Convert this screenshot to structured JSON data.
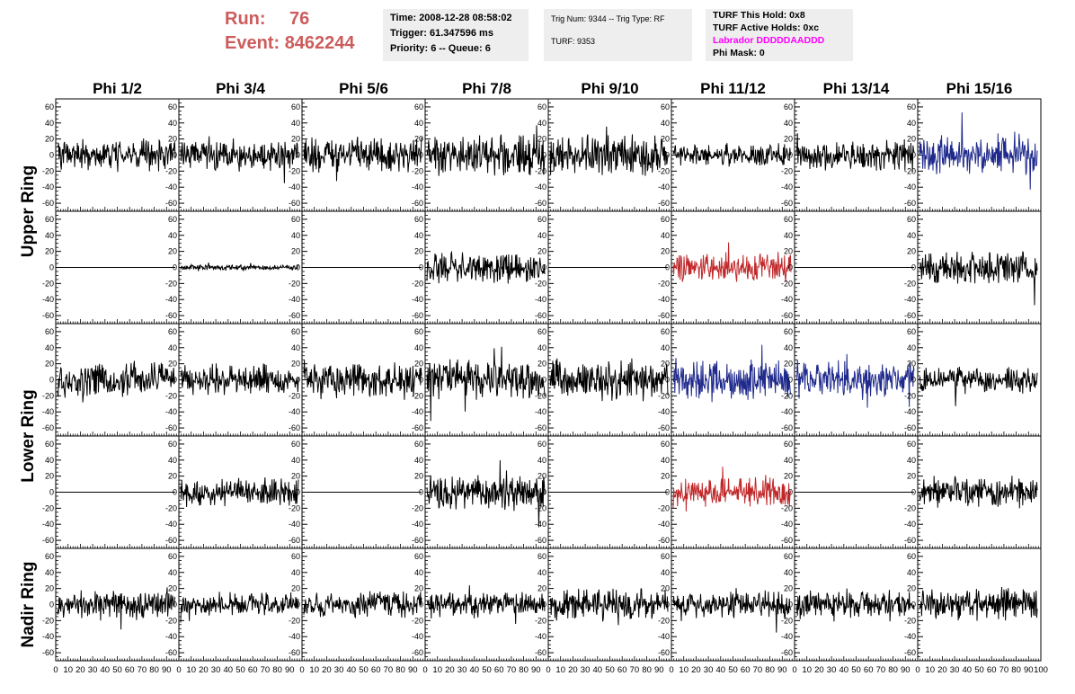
{
  "header": {
    "run_label": "Run:",
    "run_value": "76",
    "event_label": "Event:",
    "event_value": "8462244",
    "time": "Time: 2008-12-28 08:58:02",
    "trigger": "Trigger: 61.347596 ms",
    "priority": "Priority: 6 -- Queue: 6",
    "trig_num": "Trig Num: 9344 -- Trig Type: RF",
    "turf": "TURF: 9353",
    "turf_hold": "TURF This Hold: 0x8",
    "turf_active": "TURF Active Holds: 0xc",
    "labrador": "Labrador DDDDDAADDD",
    "phi_mask": "Phi Mask: 0"
  },
  "chart_data": {
    "type": "line",
    "columns": [
      "Phi 1/2",
      "Phi 3/4",
      "Phi 5/6",
      "Phi 7/8",
      "Phi 9/10",
      "Phi 11/12",
      "Phi 13/14",
      "Phi 15/16"
    ],
    "row_groups": [
      {
        "label": "Upper Ring",
        "rows": [
          0,
          1
        ]
      },
      {
        "label": "Lower Ring",
        "rows": [
          2,
          3
        ]
      },
      {
        "label": "Nadir Ring",
        "rows": [
          4
        ]
      }
    ],
    "xlim": [
      0,
      100
    ],
    "ylim": [
      -70,
      70
    ],
    "y_ticks": [
      -60,
      -40,
      -20,
      0,
      20,
      40,
      60
    ],
    "x_ticks": [
      0,
      10,
      20,
      30,
      40,
      50,
      60,
      70,
      80,
      90
    ],
    "x_ticks_last": [
      0,
      10,
      20,
      30,
      40,
      50,
      60,
      70,
      80,
      90,
      100
    ],
    "colors": {
      "normal": "#000000",
      "blue": "#1f2a8c",
      "red": "#c0282a",
      "title_red": "#cd5c5c",
      "labrador": "#ff00ff"
    },
    "panels": [
      {
        "row": 0,
        "col": 0,
        "color": "normal",
        "amp": 11,
        "offset": 0
      },
      {
        "row": 0,
        "col": 1,
        "color": "normal",
        "amp": 11,
        "offset": 0
      },
      {
        "row": 0,
        "col": 2,
        "color": "normal",
        "amp": 12,
        "offset": 0
      },
      {
        "row": 0,
        "col": 3,
        "color": "normal",
        "amp": 14,
        "offset": 0
      },
      {
        "row": 0,
        "col": 4,
        "color": "normal",
        "amp": 14,
        "offset": 0
      },
      {
        "row": 0,
        "col": 5,
        "color": "normal",
        "amp": 8,
        "offset": 0
      },
      {
        "row": 0,
        "col": 6,
        "color": "normal",
        "amp": 11,
        "offset": 0
      },
      {
        "row": 0,
        "col": 7,
        "color": "blue",
        "amp": 14,
        "offset": 0
      },
      {
        "row": 1,
        "col": 0,
        "color": "normal",
        "amp": 0,
        "offset": 0
      },
      {
        "row": 1,
        "col": 1,
        "color": "normal",
        "amp": 2,
        "offset": 0
      },
      {
        "row": 1,
        "col": 2,
        "color": "normal",
        "amp": 0,
        "offset": 0
      },
      {
        "row": 1,
        "col": 3,
        "color": "normal",
        "amp": 11,
        "offset": 0
      },
      {
        "row": 1,
        "col": 4,
        "color": "normal",
        "amp": 0,
        "offset": 0
      },
      {
        "row": 1,
        "col": 5,
        "color": "red",
        "amp": 11,
        "offset": 0
      },
      {
        "row": 1,
        "col": 6,
        "color": "normal",
        "amp": 0,
        "offset": 0
      },
      {
        "row": 1,
        "col": 7,
        "color": "normal",
        "amp": 12,
        "offset": 0
      },
      {
        "row": 2,
        "col": 0,
        "color": "normal",
        "amp": 12,
        "offset": 0
      },
      {
        "row": 2,
        "col": 1,
        "color": "normal",
        "amp": 11,
        "offset": 0
      },
      {
        "row": 2,
        "col": 2,
        "color": "normal",
        "amp": 13,
        "offset": 0
      },
      {
        "row": 2,
        "col": 3,
        "color": "normal",
        "amp": 14,
        "offset": 0
      },
      {
        "row": 2,
        "col": 4,
        "color": "normal",
        "amp": 14,
        "offset": 0
      },
      {
        "row": 2,
        "col": 5,
        "color": "blue",
        "amp": 14,
        "offset": 0
      },
      {
        "row": 2,
        "col": 6,
        "color": "blue",
        "amp": 13,
        "offset": 0
      },
      {
        "row": 2,
        "col": 7,
        "color": "normal",
        "amp": 9,
        "offset": 0
      },
      {
        "row": 3,
        "col": 0,
        "color": "normal",
        "amp": 0,
        "offset": 0
      },
      {
        "row": 3,
        "col": 1,
        "color": "normal",
        "amp": 10,
        "offset": 0
      },
      {
        "row": 3,
        "col": 2,
        "color": "normal",
        "amp": 0,
        "offset": 0
      },
      {
        "row": 3,
        "col": 3,
        "color": "normal",
        "amp": 12,
        "offset": 0
      },
      {
        "row": 3,
        "col": 4,
        "color": "normal",
        "amp": 0,
        "offset": 0
      },
      {
        "row": 3,
        "col": 5,
        "color": "red",
        "amp": 11,
        "offset": 0
      },
      {
        "row": 3,
        "col": 6,
        "color": "normal",
        "amp": 0,
        "offset": 0
      },
      {
        "row": 3,
        "col": 7,
        "color": "normal",
        "amp": 11,
        "offset": 0
      },
      {
        "row": 4,
        "col": 0,
        "color": "normal",
        "amp": 11,
        "offset": 0
      },
      {
        "row": 4,
        "col": 1,
        "color": "normal",
        "amp": 8,
        "offset": 0
      },
      {
        "row": 4,
        "col": 2,
        "color": "normal",
        "amp": 9,
        "offset": 0
      },
      {
        "row": 4,
        "col": 3,
        "color": "normal",
        "amp": 9,
        "offset": 0
      },
      {
        "row": 4,
        "col": 4,
        "color": "normal",
        "amp": 11,
        "offset": 0
      },
      {
        "row": 4,
        "col": 5,
        "color": "normal",
        "amp": 10,
        "offset": 0
      },
      {
        "row": 4,
        "col": 6,
        "color": "normal",
        "amp": 11,
        "offset": 0
      },
      {
        "row": 4,
        "col": 7,
        "color": "normal",
        "amp": 11,
        "offset": 0
      }
    ]
  }
}
